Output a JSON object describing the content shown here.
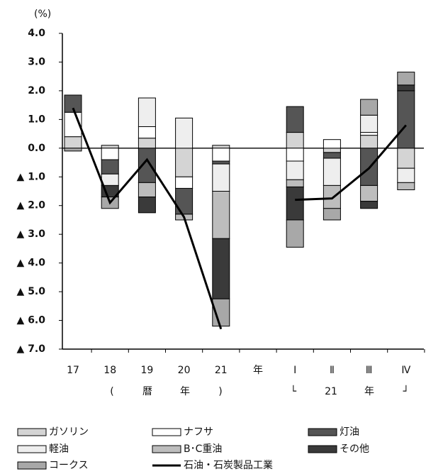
{
  "chart_data": {
    "type": "bar",
    "unit_label": "(%)",
    "categories": [
      "17",
      "18",
      "19",
      "20",
      "21",
      "年",
      "Ⅰ",
      "Ⅱ",
      "Ⅲ",
      "Ⅳ"
    ],
    "x_notes": [
      "(",
      "暦",
      "年",
      ")",
      "└",
      "21",
      "年",
      "┘"
    ],
    "ylim": [
      -7,
      4
    ],
    "yticks": [
      {
        "value": 4,
        "label": "4.0"
      },
      {
        "value": 3,
        "label": "3.0"
      },
      {
        "value": 2,
        "label": "2.0"
      },
      {
        "value": 1,
        "label": "1.0"
      },
      {
        "value": 0,
        "label": "0.0"
      },
      {
        "value": -1,
        "label": "▲ 1.0"
      },
      {
        "value": -2,
        "label": "▲ 2.0"
      },
      {
        "value": -3,
        "label": "▲ 3.0"
      },
      {
        "value": -4,
        "label": "▲ 4.0"
      },
      {
        "value": -5,
        "label": "▲ 5.0"
      },
      {
        "value": -6,
        "label": "▲ 6.0"
      },
      {
        "value": -7,
        "label": "▲ 7.0"
      }
    ],
    "series": [
      {
        "name": "ガソリン",
        "color": "#d4d4d4",
        "values": [
          0.4,
          0.1,
          0.35,
          -1.0,
          0.1,
          null,
          0.55,
          -0.15,
          0.45,
          -0.7
        ]
      },
      {
        "name": "ナフサ",
        "color": "#ffffff",
        "values": [
          0.85,
          -0.4,
          0.4,
          -0.4,
          -0.45,
          null,
          -0.45,
          0.3,
          0.1,
          0
        ]
      },
      {
        "name": "灯油",
        "color": "#555555",
        "values": [
          0.6,
          -0.5,
          -1.2,
          -0.9,
          -0.1,
          null,
          0.9,
          -0.2,
          -1.3,
          2.0
        ]
      },
      {
        "name": "軽油",
        "color": "#eeeeee",
        "values": [
          0,
          -0.4,
          1.0,
          1.05,
          -0.95,
          null,
          -0.65,
          -0.95,
          0.6,
          -0.5
        ]
      },
      {
        "name": "B･C重油",
        "color": "#bdbdbd",
        "values": [
          0,
          0,
          -0.5,
          -0.2,
          -1.65,
          null,
          -0.25,
          -0.8,
          -0.55,
          -0.25
        ]
      },
      {
        "name": "その他",
        "color": "#3a3a3a",
        "values": [
          0,
          -0.4,
          -0.55,
          0,
          -2.1,
          null,
          -1.15,
          0,
          -0.25,
          0.2
        ]
      },
      {
        "name": "コークス",
        "color": "#a8a8a8",
        "values": [
          -0.1,
          -0.4,
          0,
          0,
          -0.95,
          null,
          -0.95,
          -0.4,
          0.55,
          0.45
        ]
      },
      {
        "name": "石油・石炭製品工業",
        "type": "line",
        "color": "#000000",
        "values": [
          1.4,
          -1.9,
          -0.4,
          -2.4,
          -6.3,
          null,
          -1.8,
          -1.75,
          -0.7,
          0.8
        ]
      }
    ]
  }
}
